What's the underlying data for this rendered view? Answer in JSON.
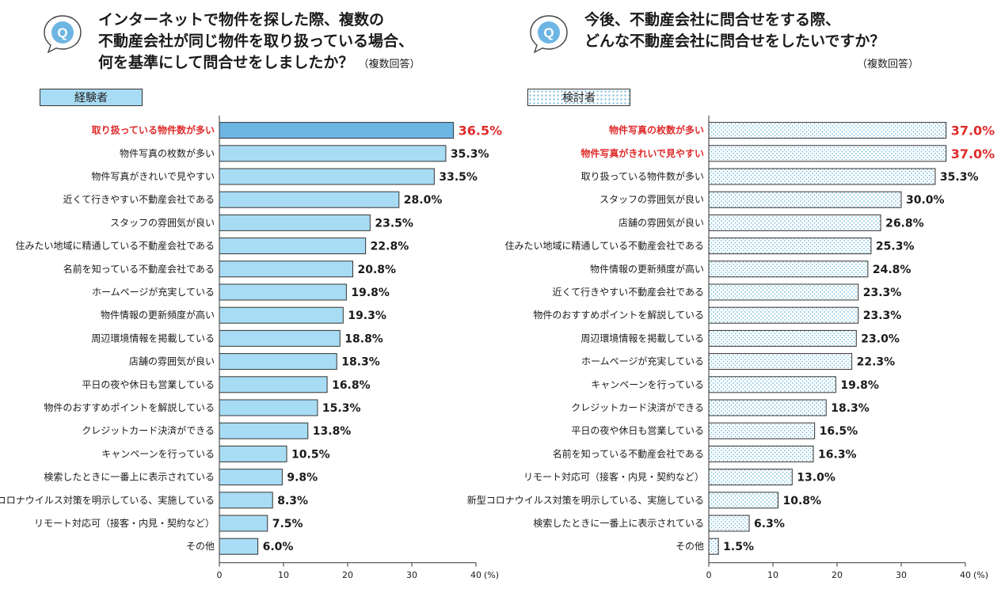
{
  "charts": {
    "left": {
      "title_lines": [
        "インターネットで物件を探した際、複数の",
        "不動産会社が同じ物件を取り扱っている場合、",
        "何を基準にして問合せをしましたか？"
      ],
      "note": "（複数回答）",
      "legend": "経験者",
      "bubble_letter": "Q"
    },
    "right": {
      "title_lines": [
        "今後、不動産会社に問合せをする際、",
        "どんな不動産会社に問合せをしたいですか？"
      ],
      "note": "（複数回答）",
      "legend": "検討者",
      "bubble_letter": "Q"
    }
  },
  "chart_data": [
    {
      "type": "bar",
      "orientation": "horizontal",
      "title": "インターネットで物件を探した際、複数の不動産会社が同じ物件を取り扱っている場合、何を基準にして問合せをしましたか？",
      "series_name": "経験者",
      "unit": "%",
      "xlim": [
        0,
        40
      ],
      "xticks": [
        "0",
        "10",
        "20",
        "30",
        "40"
      ],
      "xunit_label": "(%)",
      "highlighted": [
        0
      ],
      "colors": {
        "bar": "#a8dcf4",
        "bar_highlight": "#6db5e3",
        "highlight_text": "#e02b2b"
      },
      "categories": [
        "取り扱っている物件数が多い",
        "物件写真の枚数が多い",
        "物件写真がきれいで見やすい",
        "近くて行きやすい不動産会社である",
        "スタッフの雰囲気が良い",
        "住みたい地域に精通している不動産会社である",
        "名前を知っている不動産会社である",
        "ホームページが充実している",
        "物件情報の更新頻度が高い",
        "周辺環境情報を掲載している",
        "店舗の雰囲気が良い",
        "平日の夜や休日も営業している",
        "物件のおすすめポイントを解説している",
        "クレジットカード決済ができる",
        "キャンペーンを行っている",
        "検索したときに一番上に表示されている",
        "新型コロナウイルス対策を明示している、実施している",
        "リモート対応可（接客・内見・契約など）",
        "その他"
      ],
      "values": [
        36.5,
        35.3,
        33.5,
        28.0,
        23.5,
        22.8,
        20.8,
        19.8,
        19.3,
        18.8,
        18.3,
        16.8,
        15.3,
        13.8,
        10.5,
        9.8,
        8.3,
        7.5,
        6.0
      ],
      "labels": [
        "36.5%",
        "35.3%",
        "33.5%",
        "28.0%",
        "23.5%",
        "22.8%",
        "20.8%",
        "19.8%",
        "19.3%",
        "18.8%",
        "18.3%",
        "16.8%",
        "15.3%",
        "13.8%",
        "10.5%",
        "9.8%",
        "8.3%",
        "7.5%",
        "6.0%"
      ]
    },
    {
      "type": "bar",
      "orientation": "horizontal",
      "title": "今後、不動産会社に問合せをする際、どんな不動産会社に問合せをしたいですか？",
      "series_name": "検討者",
      "unit": "%",
      "xlim": [
        0,
        40
      ],
      "xticks": [
        "0",
        "10",
        "20",
        "30",
        "40"
      ],
      "xunit_label": "(%)",
      "highlighted": [
        0,
        1
      ],
      "colors": {
        "bar": "#ffffff",
        "dot": "#6cb7dc",
        "highlight_text": "#e02b2b"
      },
      "categories": [
        "物件写真の枚数が多い",
        "物件写真がきれいで見やすい",
        "取り扱っている物件数が多い",
        "スタッフの雰囲気が良い",
        "店舗の雰囲気が良い",
        "住みたい地域に精通している不動産会社である",
        "物件情報の更新頻度が高い",
        "近くて行きやすい不動産会社である",
        "物件のおすすめポイントを解説している",
        "周辺環境情報を掲載している",
        "ホームページが充実している",
        "キャンペーンを行っている",
        "クレジットカード決済ができる",
        "平日の夜や休日も営業している",
        "名前を知っている不動産会社である",
        "リモート対応可（接客・内見・契約など）",
        "新型コロナウイルス対策を明示している、実施している",
        "検索したときに一番上に表示されている",
        "その他"
      ],
      "values": [
        37.0,
        37.0,
        35.3,
        30.0,
        26.8,
        25.3,
        24.8,
        23.3,
        23.3,
        23.0,
        22.3,
        19.8,
        18.3,
        16.5,
        16.3,
        13.0,
        10.8,
        6.3,
        1.5
      ],
      "labels": [
        "37.0%",
        "37.0%",
        "35.3%",
        "30.0%",
        "26.8%",
        "25.3%",
        "24.8%",
        "23.3%",
        "23.3%",
        "23.0%",
        "22.3%",
        "19.8%",
        "18.3%",
        "16.5%",
        "16.3%",
        "13.0%",
        "10.8%",
        "6.3%",
        "1.5%"
      ]
    }
  ]
}
